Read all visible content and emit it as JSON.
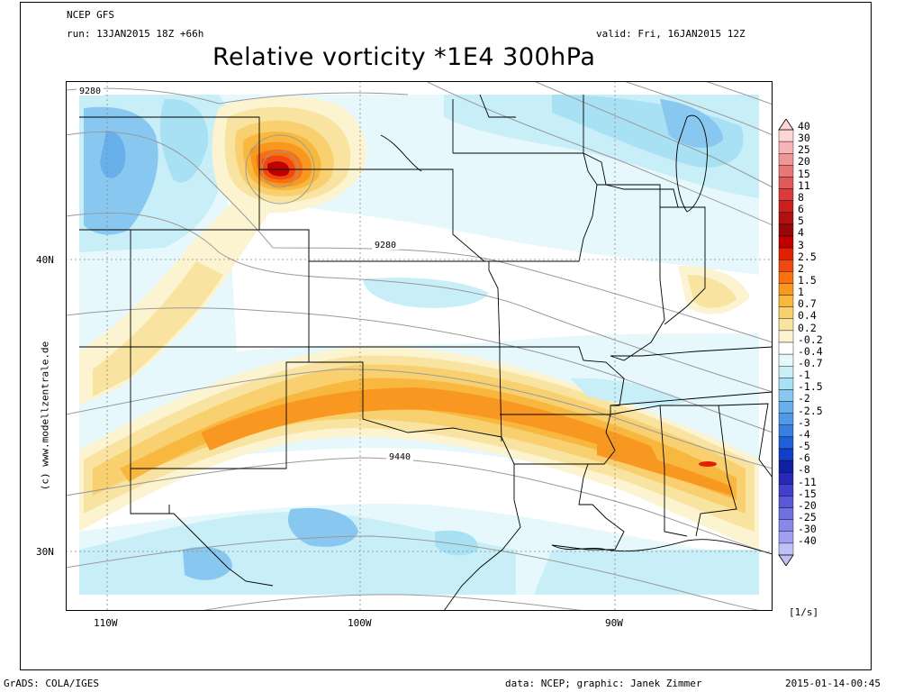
{
  "header": {
    "model": "NCEP GFS",
    "run": "run: 13JAN2015 18Z +66h",
    "valid": "valid: Fri, 16JAN2015 12Z",
    "title": "Relative vorticity *1E4 300hPa"
  },
  "watermark": "(c) www.modellzentrale.de",
  "axes": {
    "lat_labels": [
      "40N",
      "30N"
    ],
    "lon_labels": [
      "110W",
      "100W",
      "90W"
    ]
  },
  "contour_labels": [
    "9280",
    "9280",
    "9440"
  ],
  "colorbar": {
    "unit": "[1/s]",
    "labels": [
      "40",
      "30",
      "25",
      "20",
      "15",
      "11",
      "8",
      "6",
      "5",
      "4",
      "3",
      "2.5",
      "2",
      "1.5",
      "1",
      "0.7",
      "0.4",
      "0.2",
      "-0.2",
      "-0.4",
      "-0.7",
      "-1",
      "-1.5",
      "-2",
      "-2.5",
      "-3",
      "-4",
      "-5",
      "-6",
      "-8",
      "-11",
      "-15",
      "-20",
      "-25",
      "-30",
      "-40"
    ],
    "colors": [
      "#ffd6d6",
      "#f8b4b4",
      "#f09696",
      "#e87878",
      "#e05a5a",
      "#d83c3c",
      "#cc2020",
      "#b01010",
      "#980808",
      "#c00000",
      "#e02000",
      "#f04810",
      "#f87010",
      "#f89820",
      "#f8b840",
      "#f8d070",
      "#f8e4a0",
      "#fcf4d0",
      "#ffffff",
      "#e6f8fc",
      "#c8eef8",
      "#a8e0f4",
      "#88c8f0",
      "#68b0ec",
      "#5098e8",
      "#3880e0",
      "#2060d8",
      "#1040c8",
      "#1020a0",
      "#2828b8",
      "#4040c8",
      "#5858d8",
      "#7070e0",
      "#8888e8",
      "#a0a0f0",
      "#c0c0f8"
    ]
  },
  "footer": {
    "left": "GrADS: COLA/IGES",
    "middle": "data: NCEP; graphic: Janek Zimmer",
    "right": "2015-01-14-00:45"
  }
}
